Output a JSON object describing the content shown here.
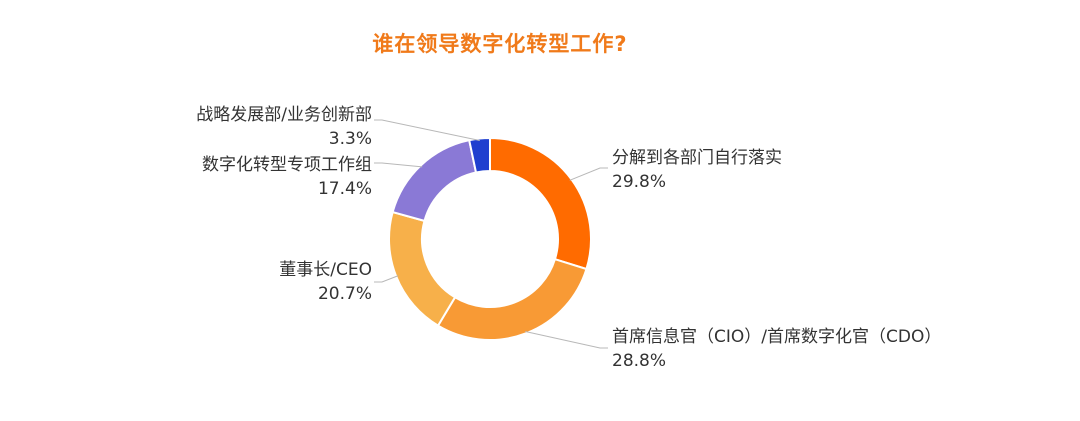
{
  "chart_data": {
    "type": "pie",
    "title": "谁在领导数字化转型工作?",
    "legend": "none",
    "slices": [
      {
        "label": "分解到各部门自行落实",
        "value": 29.8,
        "value_label": "29.8%",
        "color": "#ff6b00"
      },
      {
        "label": "首席信息官（CIO）/首席数字化官（CDO）",
        "value": 28.8,
        "value_label": "28.8%",
        "color": "#f89a35"
      },
      {
        "label": "董事长/CEO",
        "value": 20.7,
        "value_label": "20.7%",
        "color": "#f7b04a"
      },
      {
        "label": "数字化转型专项工作组",
        "value": 17.4,
        "value_label": "17.4%",
        "color": "#8a79d6"
      },
      {
        "label": "战略发展部/业务创新部",
        "value": 3.3,
        "value_label": "3.3%",
        "color": "#1f3fcf"
      }
    ]
  }
}
